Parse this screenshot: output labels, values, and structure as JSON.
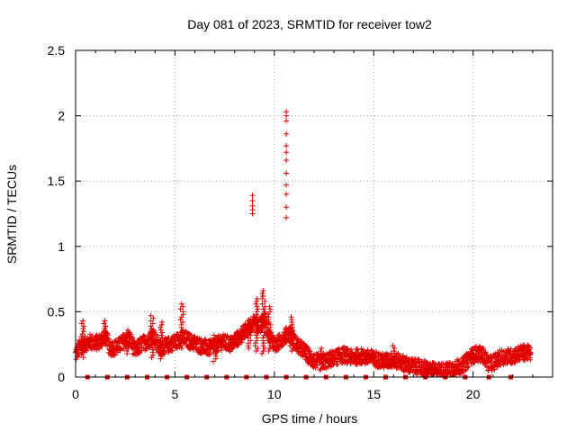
{
  "chart_data": {
    "type": "scatter",
    "title": "Day 081 of 2023, SRMTID for receiver tow2",
    "xlabel": "GPS time / hours",
    "ylabel": "SRMTID / TECUs",
    "xlim": [
      0,
      24
    ],
    "ylim": [
      0,
      2.5
    ],
    "x_ticks": [
      0,
      5,
      10,
      15,
      20
    ],
    "x_tick_labels": [
      "0",
      "5",
      "10",
      "15",
      "20"
    ],
    "y_ticks": [
      0,
      0.5,
      1,
      1.5,
      2,
      2.5
    ],
    "y_tick_labels": [
      "0",
      "0.5",
      "1",
      "1.5",
      "2",
      "2.5"
    ],
    "grid": true,
    "colors": {
      "series": "#e00000",
      "grid": "#a0a0a0",
      "axis": "#000000"
    },
    "series": [
      {
        "name": "SRMTID",
        "marker": "plus",
        "profile": [
          [
            0.0,
            0.17
          ],
          [
            0.2,
            0.23
          ],
          [
            0.4,
            0.25
          ],
          [
            0.7,
            0.27
          ],
          [
            1.0,
            0.26
          ],
          [
            1.3,
            0.28
          ],
          [
            1.5,
            0.33
          ],
          [
            1.7,
            0.22
          ],
          [
            2.1,
            0.23
          ],
          [
            2.4,
            0.27
          ],
          [
            2.7,
            0.3
          ],
          [
            3.0,
            0.2
          ],
          [
            3.3,
            0.25
          ],
          [
            3.7,
            0.28
          ],
          [
            3.9,
            0.33
          ],
          [
            4.2,
            0.22
          ],
          [
            4.6,
            0.24
          ],
          [
            5.0,
            0.27
          ],
          [
            5.4,
            0.3
          ],
          [
            5.8,
            0.27
          ],
          [
            6.3,
            0.24
          ],
          [
            6.7,
            0.22
          ],
          [
            7.0,
            0.24
          ],
          [
            7.4,
            0.27
          ],
          [
            7.8,
            0.25
          ],
          [
            8.2,
            0.3
          ],
          [
            8.6,
            0.36
          ],
          [
            8.9,
            0.42
          ],
          [
            9.2,
            0.38
          ],
          [
            9.5,
            0.45
          ],
          [
            9.8,
            0.3
          ],
          [
            10.1,
            0.24
          ],
          [
            10.4,
            0.3
          ],
          [
            10.8,
            0.34
          ],
          [
            11.1,
            0.25
          ],
          [
            11.5,
            0.2
          ],
          [
            11.9,
            0.13
          ],
          [
            12.3,
            0.11
          ],
          [
            12.7,
            0.13
          ],
          [
            13.1,
            0.15
          ],
          [
            13.5,
            0.17
          ],
          [
            13.9,
            0.15
          ],
          [
            14.3,
            0.16
          ],
          [
            14.7,
            0.15
          ],
          [
            15.1,
            0.14
          ],
          [
            15.5,
            0.12
          ],
          [
            15.9,
            0.13
          ],
          [
            16.3,
            0.12
          ],
          [
            16.7,
            0.09
          ],
          [
            17.1,
            0.08
          ],
          [
            17.5,
            0.07
          ],
          [
            17.9,
            0.05
          ],
          [
            18.3,
            0.05
          ],
          [
            18.7,
            0.05
          ],
          [
            19.1,
            0.07
          ],
          [
            19.5,
            0.09
          ],
          [
            19.9,
            0.16
          ],
          [
            20.2,
            0.18
          ],
          [
            20.5,
            0.17
          ],
          [
            20.8,
            0.1
          ],
          [
            21.1,
            0.12
          ],
          [
            21.4,
            0.15
          ],
          [
            21.7,
            0.16
          ],
          [
            22.0,
            0.16
          ],
          [
            22.3,
            0.18
          ],
          [
            22.6,
            0.19
          ],
          [
            22.9,
            0.18
          ]
        ],
        "x_range": [
          0.0,
          22.9
        ],
        "bursts": [
          {
            "x": 0.35,
            "low": 0.15,
            "high": 0.44
          },
          {
            "x": 1.45,
            "low": 0.25,
            "high": 0.45
          },
          {
            "x": 2.6,
            "low": 0.18,
            "high": 0.37
          },
          {
            "x": 3.85,
            "low": 0.15,
            "high": 0.48
          },
          {
            "x": 4.3,
            "low": 0.14,
            "high": 0.44
          },
          {
            "x": 5.35,
            "low": 0.22,
            "high": 0.58
          },
          {
            "x": 7.0,
            "low": 0.12,
            "high": 0.32
          },
          {
            "x": 8.75,
            "low": 0.22,
            "high": 0.45
          },
          {
            "x": 9.1,
            "low": 0.2,
            "high": 0.62
          },
          {
            "x": 9.45,
            "low": 0.18,
            "high": 0.67
          },
          {
            "x": 9.75,
            "low": 0.2,
            "high": 0.55
          },
          {
            "x": 10.85,
            "low": 0.2,
            "high": 0.48
          },
          {
            "x": 12.4,
            "low": 0.08,
            "high": 0.22
          },
          {
            "x": 16.0,
            "low": 0.08,
            "high": 0.24
          }
        ],
        "outliers": [
          {
            "x": 8.9,
            "y": [
              1.25,
              1.28,
              1.31,
              1.35,
              1.39
            ]
          },
          {
            "x": 10.6,
            "y": [
              1.22,
              1.3,
              1.4,
              1.47,
              1.56,
              1.66,
              1.72,
              1.77,
              1.86,
              1.96,
              2.0,
              2.03
            ]
          }
        ],
        "zero_markers_x": [
          0.6,
          1.6,
          2.6,
          3.6,
          4.6,
          5.6,
          6.6,
          7.6,
          8.6,
          9.6,
          10.6,
          11.6,
          12.6,
          13.6,
          14.6,
          15.6,
          16.6,
          17.6,
          18.6,
          19.6,
          20.8,
          21.9
        ]
      }
    ]
  }
}
